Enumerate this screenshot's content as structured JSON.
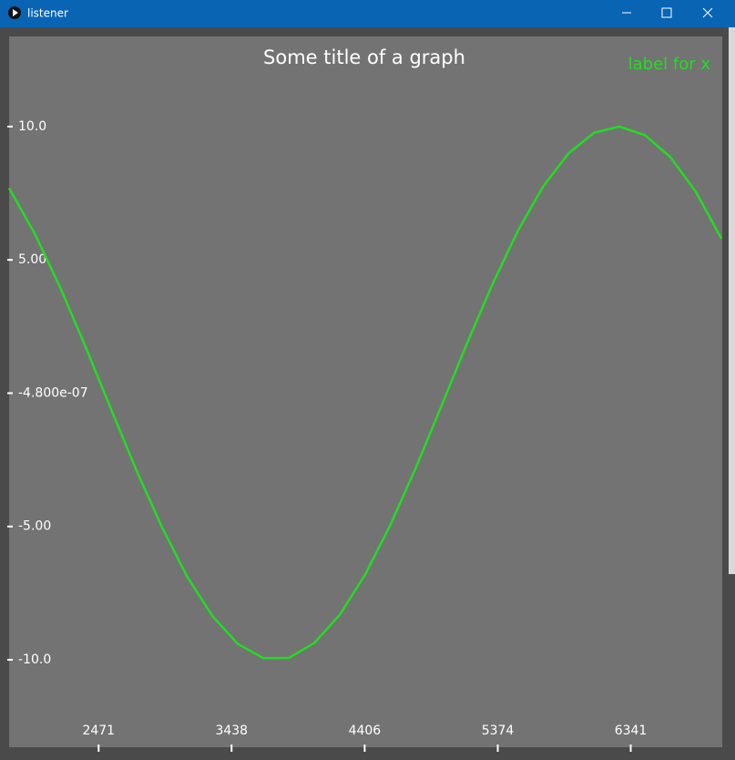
{
  "window": {
    "title": "listener"
  },
  "chart_data": {
    "type": "line",
    "title": "Some title of a graph",
    "annotation": "label for x",
    "x": [
      1820,
      2005,
      2190,
      2375,
      2560,
      2745,
      2930,
      3115,
      3300,
      3485,
      3670,
      3855,
      4040,
      4225,
      4410,
      4595,
      4780,
      4965,
      5150,
      5335,
      5520,
      5705,
      5890,
      6075,
      6260,
      6445,
      6630,
      6815,
      7000
    ],
    "series": [
      {
        "color": "#22dd22",
        "values": [
          7.69,
          6.0,
          3.98,
          1.75,
          -0.58,
          -2.88,
          -5.01,
          -6.88,
          -8.37,
          -9.41,
          -9.94,
          -9.93,
          -9.37,
          -8.31,
          -6.8,
          -4.92,
          -2.77,
          -0.47,
          1.86,
          4.08,
          6.09,
          7.76,
          9.0,
          9.77,
          10.0,
          9.68,
          8.85,
          7.55,
          5.8
        ]
      }
    ],
    "xlim": [
      1820,
      7000
    ],
    "xticks": [
      2471,
      3438,
      4406,
      5374,
      6341
    ],
    "ylim": [
      -13.28,
      13.38
    ],
    "yticks": [
      {
        "value": 10,
        "label": "10.0"
      },
      {
        "value": 5,
        "label": "5.00"
      },
      {
        "value": -4.8e-07,
        "label": "-4.800e-07"
      },
      {
        "value": -5,
        "label": "-5.00"
      },
      {
        "value": -10,
        "label": "-10.0"
      }
    ],
    "grid": false
  }
}
